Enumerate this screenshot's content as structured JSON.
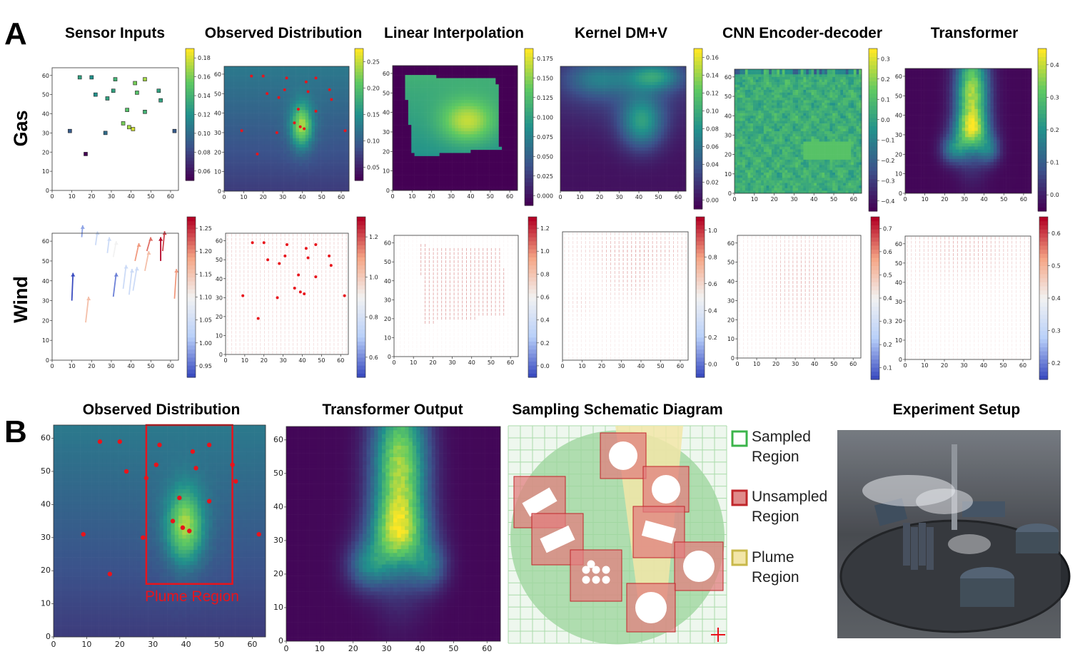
{
  "figure": {
    "panel_a_letter": "A",
    "panel_b_letter": "B",
    "row_labels": [
      "Gas",
      "Wind"
    ],
    "column_titles": [
      "Sensor Inputs",
      "Observed Distribution",
      "Linear Interpolation",
      "Kernel DM+V",
      "CNN Encoder-decoder",
      "Transformer"
    ],
    "panel_b_titles": [
      "Observed Distribution",
      "Transformer Output",
      "Sampling Schematic Diagram",
      "Experiment Setup"
    ],
    "plume_label": "Plume  Region",
    "legend": [
      {
        "line1": "Sampled",
        "line2": "Region",
        "color": "#3cb44b",
        "fill": "#ffffff"
      },
      {
        "line1": "Unsampled",
        "line2": "Region",
        "color": "#c0262b",
        "fill": "#e08a8a"
      },
      {
        "line1": "Plume",
        "line2": "Region",
        "color": "#c8b84a",
        "fill": "#f2e6a8"
      }
    ]
  },
  "colors": {
    "viridis": [
      "#440154",
      "#3b528b",
      "#21918c",
      "#5ec962",
      "#fde725"
    ],
    "coolwarm": [
      "#3b4cc0",
      "#b9d0f9",
      "#f2f2f2",
      "#f5a585",
      "#b40426"
    ],
    "sensor_marker": "#e8141c",
    "plume_box": "#e8141c"
  },
  "chart_data": [
    {
      "type": "scatter",
      "panel": "A-gas",
      "title": "Sensor Inputs",
      "x_ticks": [
        "0",
        "10",
        "20",
        "30",
        "40",
        "50",
        "60"
      ],
      "y_ticks": [
        "0",
        "10",
        "20",
        "30",
        "40",
        "50",
        "60"
      ],
      "colorbar_ticks": [
        "0.06",
        "0.08",
        "0.10",
        "0.12",
        "0.14",
        "0.16",
        "0.18"
      ],
      "points": [
        {
          "x": 14,
          "y": 59,
          "v": 0.13
        },
        {
          "x": 20,
          "y": 59,
          "v": 0.12
        },
        {
          "x": 22,
          "y": 50,
          "v": 0.12
        },
        {
          "x": 28,
          "y": 48,
          "v": 0.13
        },
        {
          "x": 32,
          "y": 58,
          "v": 0.14
        },
        {
          "x": 31,
          "y": 52,
          "v": 0.13
        },
        {
          "x": 42,
          "y": 56,
          "v": 0.16
        },
        {
          "x": 47,
          "y": 58,
          "v": 0.17
        },
        {
          "x": 43,
          "y": 51,
          "v": 0.15
        },
        {
          "x": 54,
          "y": 52,
          "v": 0.13
        },
        {
          "x": 55,
          "y": 47,
          "v": 0.13
        },
        {
          "x": 38,
          "y": 42,
          "v": 0.15
        },
        {
          "x": 47,
          "y": 41,
          "v": 0.14
        },
        {
          "x": 36,
          "y": 35,
          "v": 0.16
        },
        {
          "x": 39,
          "y": 33,
          "v": 0.17
        },
        {
          "x": 41,
          "y": 32,
          "v": 0.18
        },
        {
          "x": 27,
          "y": 30,
          "v": 0.1
        },
        {
          "x": 9,
          "y": 31,
          "v": 0.09
        },
        {
          "x": 62,
          "y": 31,
          "v": 0.09
        },
        {
          "x": 17,
          "y": 19,
          "v": 0.05
        }
      ]
    },
    {
      "type": "heatmap",
      "panel": "A-gas",
      "title": "Observed Distribution",
      "x_ticks": [
        "0",
        "10",
        "20",
        "30",
        "40",
        "50",
        "60"
      ],
      "y_ticks": [
        "0",
        "10",
        "20",
        "30",
        "40",
        "50",
        "60"
      ],
      "colorbar_ticks": [
        "0.05",
        "0.10",
        "0.15",
        "0.20",
        "0.25"
      ]
    },
    {
      "type": "heatmap",
      "panel": "A-gas",
      "title": "Linear Interpolation",
      "x_ticks": [
        "0",
        "10",
        "20",
        "30",
        "40",
        "50",
        "60"
      ],
      "y_ticks": [
        "0",
        "10",
        "20",
        "30",
        "40",
        "50",
        "60"
      ],
      "colorbar_ticks": [
        "0.000",
        "0.025",
        "0.050",
        "0.075",
        "0.100",
        "0.125",
        "0.150",
        "0.175"
      ]
    },
    {
      "type": "heatmap",
      "panel": "A-gas",
      "title": "Kernel DM+V",
      "x_ticks": [
        "0",
        "10",
        "20",
        "30",
        "40",
        "50",
        "60"
      ],
      "y_ticks": [],
      "colorbar_ticks": [
        "0.00",
        "0.02",
        "0.04",
        "0.06",
        "0.08",
        "0.10",
        "0.12",
        "0.14",
        "0.16"
      ]
    },
    {
      "type": "heatmap",
      "panel": "A-gas",
      "title": "CNN Encoder-decoder",
      "x_ticks": [
        "0",
        "10",
        "20",
        "30",
        "40",
        "50",
        "60"
      ],
      "y_ticks": [
        "0",
        "10",
        "20",
        "30",
        "40",
        "50",
        "60"
      ],
      "colorbar_ticks": [
        "−0.4",
        "−0.3",
        "−0.2",
        "−0.1",
        "0.0",
        "0.1",
        "0.2",
        "0.3"
      ]
    },
    {
      "type": "heatmap",
      "panel": "A-gas",
      "title": "Transformer",
      "x_ticks": [
        "0",
        "10",
        "20",
        "30",
        "40",
        "50",
        "60"
      ],
      "y_ticks": [
        "0",
        "10",
        "20",
        "30",
        "40",
        "50",
        "60"
      ],
      "colorbar_ticks": [
        "0.0",
        "0.1",
        "0.2",
        "0.3",
        "0.4"
      ]
    },
    {
      "type": "quiver",
      "panel": "A-wind",
      "x_ticks": [
        "0",
        "10",
        "20",
        "30",
        "40",
        "50",
        "60"
      ],
      "y_ticks": [
        "0",
        "10",
        "20",
        "30",
        "40",
        "50",
        "60"
      ],
      "colorbar_ticks": [
        "0.95",
        "1.00",
        "1.05",
        "1.10",
        "1.15",
        "1.20",
        "1.25"
      ]
    },
    {
      "type": "quiver",
      "panel": "A-wind",
      "x_ticks": [
        "0",
        "10",
        "20",
        "30",
        "40",
        "50",
        "60"
      ],
      "y_ticks": [
        "0",
        "10",
        "20",
        "30",
        "40",
        "50",
        "60"
      ],
      "colorbar_ticks": [
        "0.6",
        "0.8",
        "1.0",
        "1.2"
      ]
    },
    {
      "type": "quiver",
      "panel": "A-wind",
      "x_ticks": [
        "0",
        "10",
        "20",
        "30",
        "40",
        "50",
        "60"
      ],
      "y_ticks": [
        "0",
        "10",
        "20",
        "30",
        "40",
        "50",
        "60"
      ],
      "colorbar_ticks": [
        "0.0",
        "0.2",
        "0.4",
        "0.6",
        "0.8",
        "1.0",
        "1.2"
      ]
    },
    {
      "type": "quiver",
      "panel": "A-wind",
      "x_ticks": [
        "0",
        "10",
        "20",
        "30",
        "40",
        "50",
        "60"
      ],
      "y_ticks": [],
      "colorbar_ticks": [
        "0.0",
        "0.2",
        "0.4",
        "0.6",
        "0.8",
        "1.0"
      ]
    },
    {
      "type": "quiver",
      "panel": "A-wind",
      "x_ticks": [
        "0",
        "10",
        "20",
        "30",
        "40",
        "50",
        "60"
      ],
      "y_ticks": [
        "0",
        "10",
        "20",
        "30",
        "40",
        "50",
        "60"
      ],
      "colorbar_ticks": [
        "0.1",
        "0.2",
        "0.3",
        "0.4",
        "0.5",
        "0.6",
        "0.7"
      ]
    },
    {
      "type": "quiver",
      "panel": "A-wind",
      "x_ticks": [
        "0",
        "10",
        "20",
        "30",
        "40",
        "50",
        "60"
      ],
      "y_ticks": [
        "0",
        "10",
        "20",
        "30",
        "40",
        "50",
        "60"
      ],
      "colorbar_ticks": [
        "0.2",
        "0.3",
        "0.4",
        "0.5",
        "0.6"
      ]
    },
    {
      "type": "heatmap",
      "panel": "B",
      "title": "Observed Distribution",
      "x_ticks": [
        "0",
        "10",
        "20",
        "30",
        "40",
        "50",
        "60"
      ],
      "y_ticks": [
        "0",
        "10",
        "20",
        "30",
        "40",
        "50",
        "60"
      ],
      "plume_box": {
        "x0": 28,
        "x1": 54,
        "y0": 16,
        "y1": 64
      }
    },
    {
      "type": "heatmap",
      "panel": "B",
      "title": "Transformer Output",
      "x_ticks": [
        "0",
        "10",
        "20",
        "30",
        "40",
        "50",
        "60"
      ],
      "y_ticks": [
        "0",
        "10",
        "20",
        "30",
        "40",
        "50",
        "60"
      ]
    }
  ]
}
